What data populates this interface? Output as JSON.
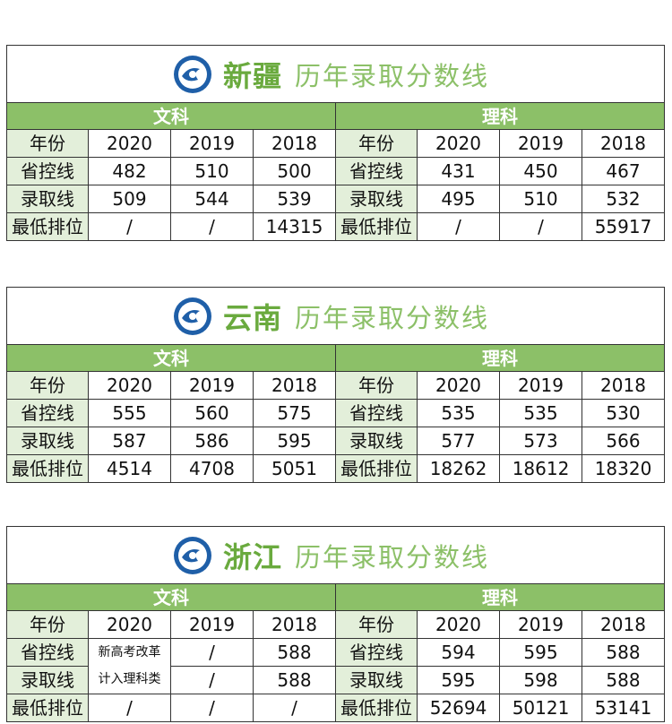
{
  "colors": {
    "accent": "#6aaa3e",
    "header_bg": "#8cc068",
    "label_bg": "#e3efda"
  },
  "logo_icon": "university-emblem-icon",
  "sub_title": "历年录取分数线",
  "col_headers": [
    "文科",
    "理科"
  ],
  "row_labels": [
    "年份",
    "省控线",
    "录取线",
    "最低排位"
  ],
  "panels": [
    {
      "province": "新疆",
      "wen": {
        "years": [
          "2020",
          "2019",
          "2018"
        ],
        "control": [
          "482",
          "510",
          "500"
        ],
        "admit": [
          "509",
          "544",
          "539"
        ],
        "rank": [
          "/",
          "/",
          "14315"
        ]
      },
      "li": {
        "years": [
          "2020",
          "2019",
          "2018"
        ],
        "control": [
          "431",
          "450",
          "467"
        ],
        "admit": [
          "495",
          "510",
          "532"
        ],
        "rank": [
          "/",
          "/",
          "55917"
        ]
      }
    },
    {
      "province": "云南",
      "wen": {
        "years": [
          "2020",
          "2019",
          "2018"
        ],
        "control": [
          "555",
          "560",
          "575"
        ],
        "admit": [
          "587",
          "586",
          "595"
        ],
        "rank": [
          "4514",
          "4708",
          "5051"
        ]
      },
      "li": {
        "years": [
          "2020",
          "2019",
          "2018"
        ],
        "control": [
          "535",
          "535",
          "530"
        ],
        "admit": [
          "577",
          "573",
          "566"
        ],
        "rank": [
          "18262",
          "18612",
          "18320"
        ]
      }
    },
    {
      "province": "浙江",
      "wen": {
        "years": [
          "2020",
          "2019",
          "2018"
        ],
        "note_line1": "新高考改革",
        "note_line2": "计入理科类",
        "control": [
          "",
          "/",
          "588"
        ],
        "admit": [
          "",
          "/",
          "588"
        ],
        "rank": [
          "/",
          "/",
          "/"
        ]
      },
      "li": {
        "years": [
          "2020",
          "2019",
          "2018"
        ],
        "control": [
          "594",
          "595",
          "588"
        ],
        "admit": [
          "595",
          "598",
          "588"
        ],
        "rank": [
          "52694",
          "50121",
          "53141"
        ]
      }
    }
  ]
}
